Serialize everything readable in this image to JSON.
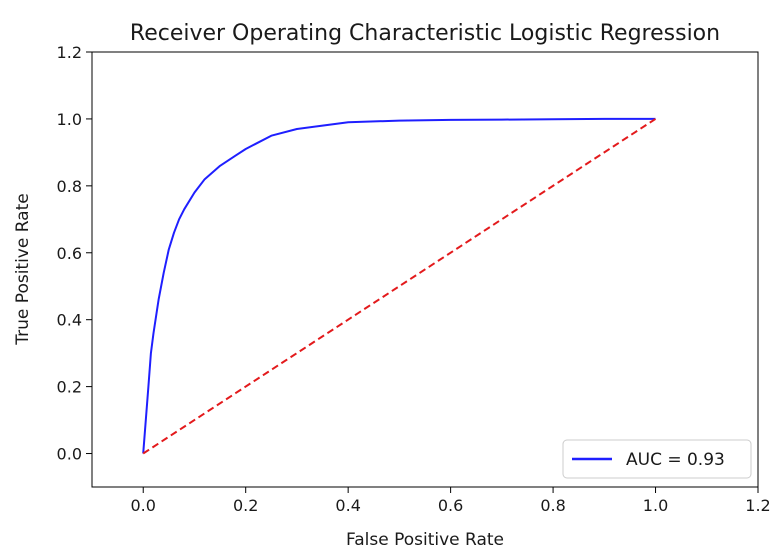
{
  "chart_data": {
    "type": "line",
    "title": "Receiver Operating Characteristic Logistic Regression",
    "xlabel": "False Positive Rate",
    "ylabel": "True Positive Rate",
    "xlim": [
      -0.1,
      1.2
    ],
    "ylim": [
      -0.1,
      1.2
    ],
    "xticks": [
      0.0,
      0.2,
      0.4,
      0.6,
      0.8,
      1.0,
      1.2
    ],
    "yticks": [
      0.0,
      0.2,
      0.4,
      0.6,
      0.8,
      1.0,
      1.2
    ],
    "tick_labels_x": [
      "0.0",
      "0.2",
      "0.4",
      "0.6",
      "0.8",
      "1.0",
      "1.2"
    ],
    "tick_labels_y": [
      "0.0",
      "0.2",
      "0.4",
      "0.6",
      "0.8",
      "1.0",
      "1.2"
    ],
    "grid": false,
    "legend_position": "lower-right",
    "series": [
      {
        "name": "AUC = 0.93",
        "color": "#1f1fff",
        "style": "solid",
        "x": [
          0.0,
          0.005,
          0.01,
          0.015,
          0.02,
          0.03,
          0.04,
          0.05,
          0.06,
          0.07,
          0.08,
          0.1,
          0.12,
          0.15,
          0.18,
          0.2,
          0.25,
          0.3,
          0.35,
          0.4,
          0.5,
          0.6,
          0.7,
          0.8,
          0.9,
          1.0
        ],
        "y": [
          0.0,
          0.1,
          0.2,
          0.3,
          0.36,
          0.46,
          0.54,
          0.61,
          0.66,
          0.7,
          0.73,
          0.78,
          0.82,
          0.86,
          0.89,
          0.91,
          0.95,
          0.97,
          0.98,
          0.99,
          0.995,
          0.997,
          0.998,
          0.999,
          1.0,
          1.0
        ]
      },
      {
        "color": "#e31a1c",
        "style": "dashed",
        "x": [
          0.0,
          1.0
        ],
        "y": [
          0.0,
          1.0
        ]
      }
    ]
  }
}
